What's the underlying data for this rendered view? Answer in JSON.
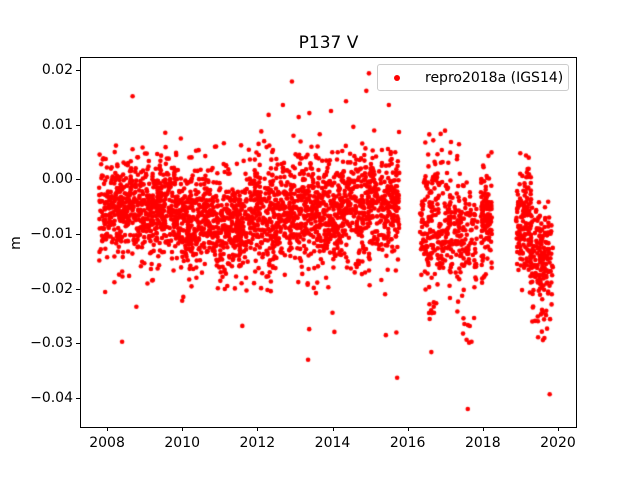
{
  "figure": {
    "background": "#ffffff"
  },
  "chart_data": {
    "type": "scatter",
    "title": "P137 V",
    "ylabel": "m",
    "xlabel": "",
    "legend": {
      "label": "repro2018a (IGS14)",
      "position": "upper right"
    },
    "marker_color": "#ff0000",
    "axis_color": "#000000",
    "grid": false,
    "xlim": [
      2007.28,
      2020.48
    ],
    "ylim": [
      -0.0453,
      0.0223
    ],
    "xticks": {
      "values": [
        2008,
        2010,
        2012,
        2014,
        2016,
        2018,
        2020
      ],
      "labels": [
        "2008",
        "2010",
        "2012",
        "2014",
        "2016",
        "2018",
        "2020"
      ]
    },
    "yticks": {
      "values": [
        0.02,
        0.01,
        0.0,
        -0.01,
        -0.02,
        -0.03,
        -0.04
      ],
      "labels": [
        "0.02",
        "0.01",
        "0.00",
        "−0.01",
        "−0.02",
        "−0.03",
        "−0.04"
      ]
    },
    "point_cloud": {
      "seed": 7,
      "default_ymin": -0.0205,
      "default_ymax": 0.014,
      "segments": [
        {
          "x0": 2007.79,
          "x1": 2008.8,
          "n": 300,
          "mean": -0.0048,
          "std": 0.004
        },
        {
          "x0": 2008.8,
          "x1": 2009.8,
          "n": 300,
          "mean": -0.0056,
          "std": 0.004
        },
        {
          "x0": 2009.8,
          "x1": 2010.8,
          "n": 300,
          "mean": -0.007,
          "std": 0.004
        },
        {
          "x0": 2010.8,
          "x1": 2011.9,
          "n": 320,
          "mean": -0.0082,
          "std": 0.0042
        },
        {
          "x0": 2011.9,
          "x1": 2013.1,
          "n": 350,
          "mean": -0.0058,
          "std": 0.0048
        },
        {
          "x0": 2013.1,
          "x1": 2014.1,
          "n": 300,
          "mean": -0.0062,
          "std": 0.0046
        },
        {
          "x0": 2014.1,
          "x1": 2015.05,
          "n": 280,
          "mean": -0.005,
          "std": 0.0048
        },
        {
          "x0": 2015.05,
          "x1": 2015.78,
          "n": 210,
          "mean": -0.0052,
          "std": 0.0045
        },
        {
          "x0": 2007.9,
          "x1": 2015.7,
          "n": 90,
          "mean": 0.003,
          "std": 0.0035,
          "ymin": -0.001,
          "ymax": 0.013
        },
        {
          "x0": 2008.0,
          "x1": 2015.7,
          "n": 65,
          "mean": -0.015,
          "std": 0.0028,
          "ymin": -0.0215,
          "ymax": -0.011
        },
        {
          "x0": 2016.33,
          "x1": 2017.62,
          "n": 300,
          "mean": -0.009,
          "std": 0.0055,
          "ymin": -0.0235,
          "ymax": 0.0105
        },
        {
          "x0": 2016.45,
          "x1": 2017.0,
          "n": 18,
          "mean": 0.003,
          "std": 0.003,
          "ymin": -0.001,
          "ymax": 0.0105
        },
        {
          "x0": 2016.55,
          "x1": 2016.72,
          "n": 7,
          "mean": -0.0245,
          "std": 0.0025,
          "ymin": -0.03,
          "ymax": -0.02
        },
        {
          "x0": 2017.15,
          "x1": 2017.8,
          "n": 12,
          "mean": -0.0245,
          "std": 0.0025,
          "ymin": -0.03,
          "ymax": -0.02
        },
        {
          "x0": 2017.6,
          "x1": 2017.88,
          "n": 40,
          "mean": -0.0095,
          "std": 0.005,
          "ymin": -0.022,
          "ymax": 0.004
        },
        {
          "x0": 2017.95,
          "x1": 2018.24,
          "n": 115,
          "mean": -0.008,
          "std": 0.0055,
          "ymin": -0.0225,
          "ymax": 0.0055
        },
        {
          "x0": 2018.88,
          "x1": 2019.3,
          "n": 140,
          "mean": -0.008,
          "std": 0.0048,
          "ymin": -0.021,
          "ymax": 0.0048
        },
        {
          "x0": 2019.25,
          "x1": 2019.87,
          "n": 175,
          "mean": -0.0145,
          "std": 0.0048,
          "ymin": -0.0265,
          "ymax": 0.0005
        },
        {
          "x0": 2019.4,
          "x1": 2019.8,
          "n": 10,
          "mean": -0.0255,
          "std": 0.002,
          "ymin": -0.0295,
          "ymax": -0.021
        }
      ],
      "outliers": [
        [
          2007.95,
          -0.0206
        ],
        [
          2008.4,
          -0.0297
        ],
        [
          2008.68,
          0.0152
        ],
        [
          2008.78,
          -0.0233
        ],
        [
          2009.2,
          -0.0185
        ],
        [
          2010.0,
          -0.0222
        ],
        [
          2010.03,
          -0.0215
        ],
        [
          2011.2,
          -0.0195
        ],
        [
          2011.58,
          -0.019
        ],
        [
          2011.6,
          -0.0268
        ],
        [
          2012.1,
          -0.0199
        ],
        [
          2012.3,
          0.0118
        ],
        [
          2012.68,
          0.0136
        ],
        [
          2012.92,
          0.0179
        ],
        [
          2013.1,
          0.0114
        ],
        [
          2013.34,
          -0.019
        ],
        [
          2013.35,
          -0.033
        ],
        [
          2013.38,
          -0.0274
        ],
        [
          2013.56,
          -0.0208
        ],
        [
          2013.96,
          0.0125
        ],
        [
          2014.0,
          -0.0244
        ],
        [
          2014.05,
          -0.0279
        ],
        [
          2014.36,
          0.0143
        ],
        [
          2014.9,
          0.0162
        ],
        [
          2014.97,
          0.0194
        ],
        [
          2015.3,
          -0.0184
        ],
        [
          2015.4,
          -0.021
        ],
        [
          2015.42,
          -0.0285
        ],
        [
          2015.5,
          0.0136
        ],
        [
          2015.7,
          -0.028
        ],
        [
          2015.72,
          -0.0363
        ],
        [
          2016.63,
          -0.0316
        ],
        [
          2017.6,
          -0.042
        ],
        [
          2017.7,
          -0.0297
        ],
        [
          2019.6,
          -0.0294
        ],
        [
          2019.78,
          -0.0393
        ]
      ]
    }
  }
}
